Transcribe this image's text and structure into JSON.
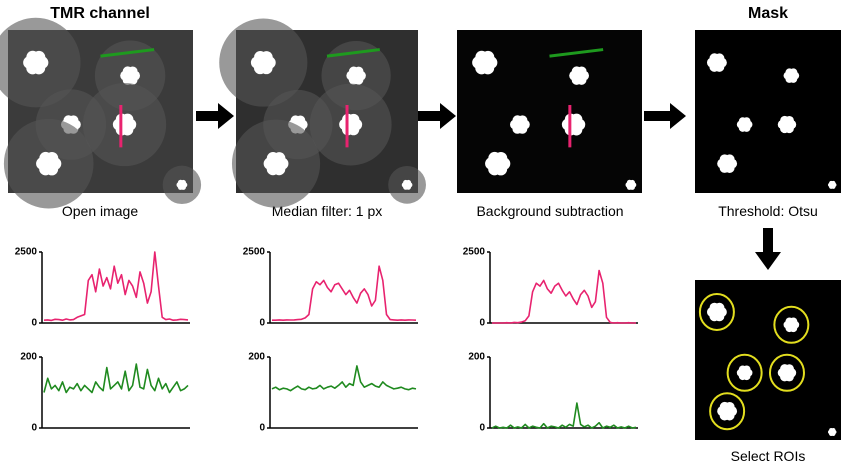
{
  "panels": [
    {
      "title": "TMR channel",
      "caption": "Open image"
    },
    {
      "caption": "Median filter: 1 px"
    },
    {
      "caption": "Background subtraction"
    },
    {
      "title": "Mask",
      "caption": "Threshold: Otsu"
    },
    {
      "caption": "Select ROIs"
    }
  ],
  "profiles": [
    {
      "type": "line",
      "color": "#e8236f",
      "ylim": [
        0,
        2500
      ],
      "yticks": [
        0,
        2500
      ],
      "values": [
        100,
        110,
        90,
        130,
        120,
        100,
        140,
        110,
        120,
        200,
        250,
        300,
        1500,
        1700,
        1100,
        1900,
        1300,
        1600,
        1200,
        2000,
        1400,
        1700,
        1000,
        1500,
        1300,
        900,
        1800,
        1400,
        700,
        1100,
        2500,
        1300,
        200,
        120,
        140,
        100,
        110,
        130,
        120,
        110
      ]
    },
    {
      "type": "line",
      "color": "#e8236f",
      "ylim": [
        0,
        2500
      ],
      "yticks": [
        0,
        2500
      ],
      "values": [
        100,
        100,
        110,
        100,
        110,
        105,
        110,
        120,
        130,
        180,
        300,
        1200,
        1450,
        1350,
        1500,
        1250,
        1100,
        1350,
        1400,
        1200,
        1000,
        1150,
        900,
        700,
        1050,
        1200,
        1000,
        600,
        800,
        2000,
        1500,
        300,
        120,
        110,
        100,
        110,
        100,
        110,
        105,
        100
      ]
    },
    {
      "type": "line",
      "color": "#e8236f",
      "ylim": [
        0,
        2500
      ],
      "yticks": [
        0,
        2500
      ],
      "values": [
        0,
        0,
        0,
        0,
        10,
        0,
        20,
        10,
        30,
        80,
        250,
        1100,
        1400,
        1300,
        1500,
        1200,
        1050,
        1300,
        1400,
        1150,
        950,
        1100,
        850,
        650,
        1000,
        1150,
        950,
        550,
        750,
        1850,
        1400,
        200,
        20,
        0,
        10,
        0,
        0,
        10,
        0,
        0
      ]
    },
    {
      "type": "line",
      "color": "#1f8a1f",
      "ylim": [
        0,
        200
      ],
      "yticks": [
        0,
        200
      ],
      "values": [
        100,
        140,
        110,
        120,
        105,
        130,
        100,
        115,
        110,
        125,
        105,
        120,
        110,
        100,
        130,
        115,
        105,
        170,
        110,
        120,
        130,
        110,
        160,
        105,
        120,
        180,
        115,
        110,
        165,
        120,
        105,
        140,
        110,
        125,
        100,
        115,
        130,
        105,
        110,
        120
      ]
    },
    {
      "type": "line",
      "color": "#1f8a1f",
      "ylim": [
        0,
        200
      ],
      "yticks": [
        0,
        200
      ],
      "values": [
        110,
        115,
        108,
        112,
        110,
        105,
        112,
        118,
        110,
        108,
        115,
        110,
        112,
        120,
        110,
        115,
        118,
        112,
        120,
        130,
        115,
        125,
        120,
        175,
        130,
        115,
        120,
        125,
        118,
        115,
        130,
        120,
        115,
        110,
        112,
        115,
        110,
        108,
        112,
        110
      ]
    },
    {
      "type": "line",
      "color": "#1f8a1f",
      "ylim": [
        0,
        200
      ],
      "yticks": [
        0,
        200
      ],
      "values": [
        0,
        5,
        0,
        2,
        0,
        8,
        0,
        3,
        0,
        10,
        0,
        5,
        2,
        0,
        12,
        0,
        5,
        3,
        0,
        8,
        2,
        10,
        5,
        70,
        10,
        3,
        8,
        0,
        5,
        15,
        0,
        5,
        2,
        8,
        0,
        3,
        0,
        5,
        0,
        2
      ]
    }
  ]
}
